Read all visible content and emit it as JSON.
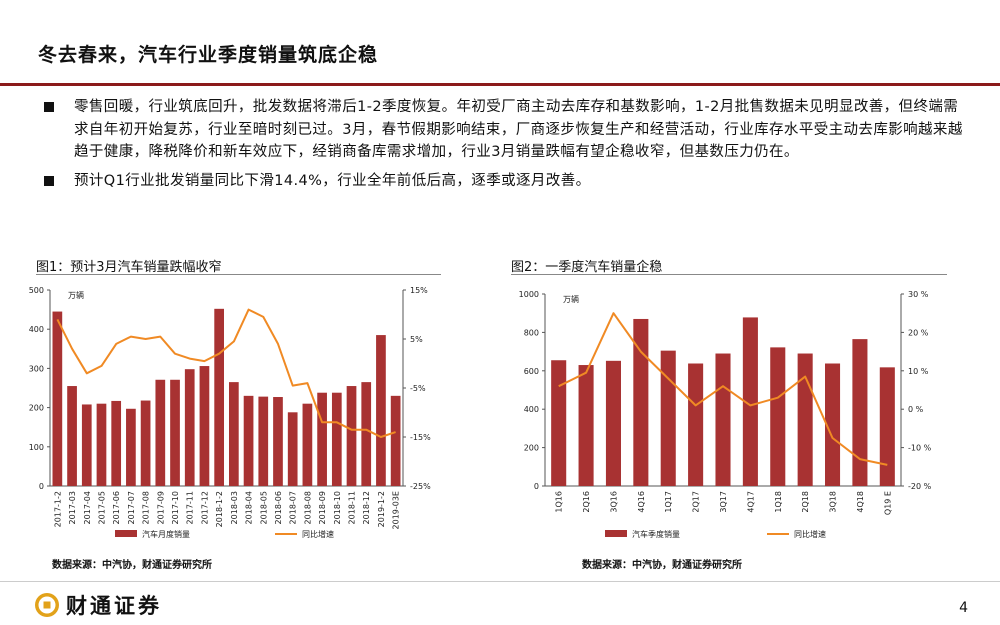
{
  "title": "冬去春来，汽车行业季度销量筑底企稳",
  "bullets": [
    "零售回暖，行业筑底回升，批发数据将滞后1-2季度恢复。年初受厂商主动去库存和基数影响，1-2月批售数据未见明显改善，但终端需求自年初开始复苏，行业至暗时刻已过。3月，春节假期影响结束，厂商逐步恢复生产和经营活动，行业库存水平受主动去库影响越来越趋于健康，降税降价和新车效应下，经销商备库需求增加，行业3月销量跌幅有望企稳收窄，但基数压力仍在。",
    "预计Q1行业批发销量同比下滑14.4%，行业全年前低后高，逐季或逐月改善。"
  ],
  "figure1": {
    "caption": "图1：预计3月汽车销量跌幅收窄",
    "source": "数据来源：中汽协，财通证券研究所"
  },
  "figure2": {
    "caption": "图2：一季度汽车销量企稳",
    "source": "数据来源：中汽协，财通证券研究所"
  },
  "footer": {
    "logo_text": "财通证券",
    "page_number": "4"
  },
  "colors": {
    "bar": "#a83232",
    "line": "#f08a24",
    "rule": "#8b1a1a"
  },
  "chart_data": [
    {
      "type": "bar",
      "title": "图1：预计3月汽车销量跌幅收窄",
      "unit_label": "万辆",
      "categories": [
        "2017-1-2",
        "2017-03",
        "2017-04",
        "2017-05",
        "2017-06",
        "2017-07",
        "2017-08",
        "2017-09",
        "2017-10",
        "2017-11",
        "2017-12",
        "2018-1-2",
        "2018-03",
        "2018-04",
        "2018-05",
        "2018-06",
        "2018-07",
        "2018-08",
        "2018-09",
        "2018-10",
        "2018-11",
        "2018-12",
        "2019-1-2",
        "2019-03E"
      ],
      "series": [
        {
          "name": "汽车月度销量",
          "type": "bar",
          "axis": "left",
          "values": [
            445,
            255,
            208,
            210,
            217,
            197,
            218,
            271,
            271,
            298,
            306,
            452,
            265,
            230,
            228,
            227,
            188,
            210,
            238,
            238,
            255,
            265,
            385,
            230
          ]
        },
        {
          "name": "同比增速",
          "type": "line",
          "axis": "right",
          "values": [
            9,
            3,
            -2,
            -0.5,
            4,
            5.5,
            5,
            5.5,
            2,
            1,
            0.5,
            2,
            4.5,
            11,
            9.5,
            4,
            -4.5,
            -4,
            -12,
            -12,
            -13.5,
            -13.5,
            -15,
            -14
          ]
        }
      ],
      "ylim_left": [
        0,
        500
      ],
      "yticks_left": [
        0,
        100,
        200,
        300,
        400,
        500
      ],
      "ylim_right": [
        -25,
        15
      ],
      "yticks_right": [
        "-25%",
        "-15%",
        "-5%",
        "5%",
        "15%"
      ],
      "legend_position": "bottom"
    },
    {
      "type": "bar",
      "title": "图2：一季度汽车销量企稳",
      "unit_label": "万辆",
      "categories": [
        "1Q16",
        "2Q16",
        "3Q16",
        "4Q16",
        "1Q17",
        "2Q17",
        "3Q17",
        "4Q17",
        "1Q18",
        "2Q18",
        "3Q18",
        "4Q18",
        "Q19 E"
      ],
      "series": [
        {
          "name": "汽车季度销量",
          "type": "bar",
          "axis": "left",
          "values": [
            655,
            630,
            652,
            870,
            705,
            638,
            690,
            878,
            722,
            690,
            638,
            765,
            618
          ]
        },
        {
          "name": "同比增速",
          "type": "line",
          "axis": "right",
          "values": [
            6,
            9.5,
            25,
            15,
            8,
            1,
            6,
            1,
            3,
            8.5,
            -7.5,
            -13,
            -14.5
          ]
        }
      ],
      "ylim_left": [
        0,
        1000
      ],
      "yticks_left": [
        0,
        200,
        400,
        600,
        800,
        1000
      ],
      "ylim_right": [
        -20,
        30
      ],
      "yticks_right": [
        "-20 %",
        "-10 %",
        "0 %",
        "10 %",
        "20 %",
        "30 %"
      ],
      "legend_position": "bottom"
    }
  ]
}
